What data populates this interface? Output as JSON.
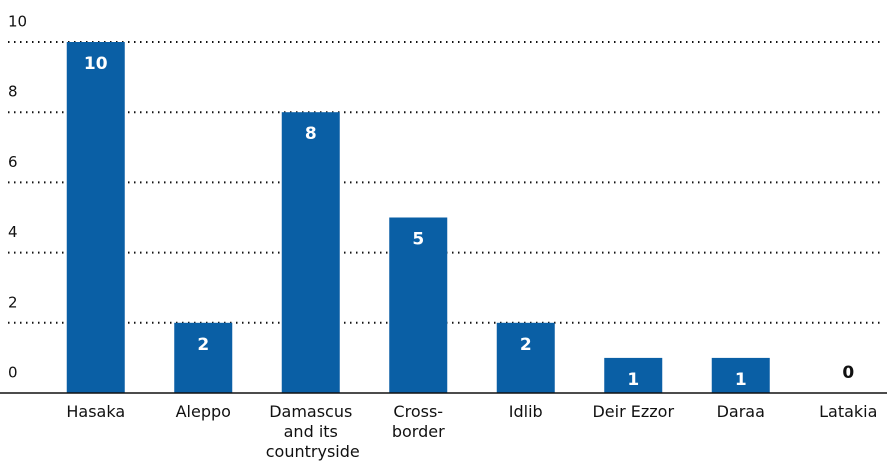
{
  "chart_data": {
    "type": "bar",
    "categories": [
      "Hasaka",
      "Aleppo",
      "Damascus and its countryside",
      "Cross-border",
      "Idlib",
      "Deir Ezzor",
      "Daraa",
      "Latakia"
    ],
    "values": [
      10,
      2,
      8,
      5,
      2,
      1,
      1,
      0
    ],
    "color": "#0a5fa5",
    "ylim": [
      0,
      10
    ],
    "yticks": [
      0,
      2,
      4,
      6,
      8,
      10
    ],
    "grid": true
  }
}
